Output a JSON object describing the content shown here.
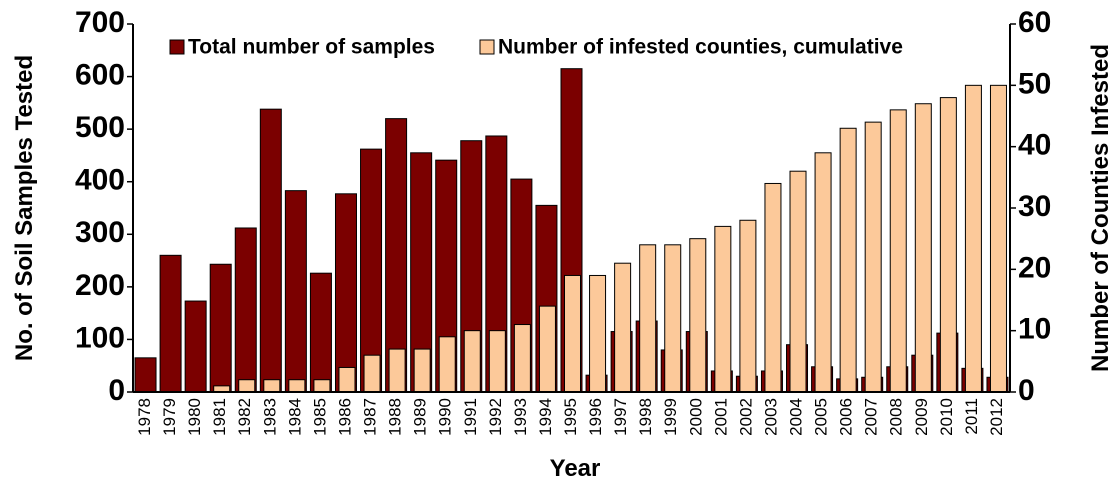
{
  "chart_data": {
    "type": "bar",
    "categories": [
      "1978",
      "1979",
      "1980",
      "1981",
      "1982",
      "1983",
      "1984",
      "1985",
      "1986",
      "1987",
      "1988",
      "1989",
      "1990",
      "1991",
      "1992",
      "1993",
      "1994",
      "1995",
      "1996",
      "1997",
      "1998",
      "1999",
      "2000",
      "2001",
      "2002",
      "2003",
      "2004",
      "2005",
      "2006",
      "2007",
      "2008",
      "2009",
      "2010",
      "2011",
      "2012"
    ],
    "series": [
      {
        "name": "Total number of samples",
        "color": "#7b0000",
        "values": [
          65,
          260,
          173,
          243,
          312,
          538,
          383,
          226,
          377,
          462,
          520,
          455,
          441,
          478,
          487,
          405,
          355,
          615,
          32,
          115,
          135,
          80,
          115,
          40,
          30,
          40,
          90,
          48,
          25,
          28,
          48,
          70,
          112,
          45,
          28
        ]
      },
      {
        "name": "Number of infested counties, cumulative",
        "color": "#fcc99a",
        "axis": "y2",
        "values": [
          0,
          0,
          0,
          1,
          2,
          2,
          2,
          2,
          4,
          6,
          7,
          7,
          9,
          10,
          10,
          11,
          14,
          19,
          19,
          21,
          24,
          24,
          25,
          27,
          28,
          34,
          36,
          39,
          43,
          44,
          46,
          47,
          48,
          50,
          50
        ]
      }
    ],
    "xlabel": "Year",
    "ylabel": "No. of Soil Samples Tested",
    "y2label": "Number of Counties Infested",
    "ylim": [
      0,
      700
    ],
    "yticks": [
      0,
      100,
      200,
      300,
      400,
      500,
      600,
      700
    ],
    "y2lim": [
      0,
      60
    ],
    "y2ticks": [
      0,
      10,
      20,
      30,
      40,
      50,
      60
    ],
    "legend": "top"
  }
}
